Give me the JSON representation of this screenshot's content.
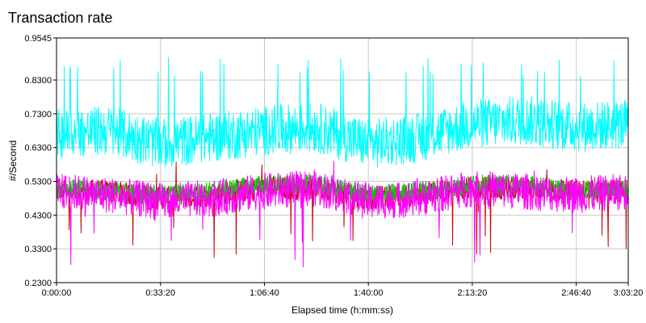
{
  "chart_data": {
    "type": "line",
    "title": "Transaction rate",
    "xlabel": "Elapsed time (h:mm:ss)",
    "ylabel": "#/Second",
    "x_range_seconds": [
      0,
      10999
    ],
    "ylim": [
      0.23,
      0.9545
    ],
    "x_ticks": [
      "0:00:00",
      "0:33:20",
      "1:06:40",
      "1:40:00",
      "2:13:20",
      "2:46:40",
      "3:03:20"
    ],
    "x_tick_seconds": [
      0,
      2000,
      4000,
      6000,
      8000,
      10000,
      11000
    ],
    "y_ticks": [
      "0.2300",
      "0.3300",
      "0.4300",
      "0.5300",
      "0.6300",
      "0.7300",
      "0.8300",
      "0.9545"
    ],
    "y_tick_values": [
      0.23,
      0.33,
      0.43,
      0.53,
      0.63,
      0.73,
      0.83,
      0.9545
    ],
    "grid": true,
    "legend": "none",
    "series": [
      {
        "color": "#00ffff",
        "approx_mean": 0.67,
        "approx_min": 0.52,
        "approx_max": 0.9,
        "x": [
          0,
          1000,
          2000,
          3000,
          4000,
          5000,
          6000,
          7000,
          8000,
          9000,
          10000,
          10999
        ],
        "values": [
          0.67,
          0.68,
          0.64,
          0.66,
          0.68,
          0.69,
          0.64,
          0.66,
          0.7,
          0.71,
          0.69,
          0.7
        ]
      },
      {
        "color": "#ff00ff",
        "approx_mean": 0.49,
        "approx_min": 0.24,
        "approx_max": 0.61,
        "x": [
          0,
          1000,
          2000,
          3000,
          4000,
          5000,
          6000,
          7000,
          8000,
          9000,
          10000,
          10999
        ],
        "values": [
          0.5,
          0.49,
          0.47,
          0.48,
          0.5,
          0.51,
          0.47,
          0.48,
          0.51,
          0.5,
          0.49,
          0.5
        ]
      },
      {
        "color": "#00cc00",
        "approx_mean": 0.51,
        "x": [
          0,
          1000,
          2000,
          3000,
          4000,
          5000,
          6000,
          7000,
          8000,
          9000,
          10000,
          10999
        ],
        "values": [
          0.51,
          0.5,
          0.49,
          0.5,
          0.52,
          0.52,
          0.49,
          0.5,
          0.52,
          0.52,
          0.5,
          0.51
        ]
      },
      {
        "color": "#cc0000",
        "approx_mean": 0.5,
        "x": [
          0,
          1000,
          2000,
          3000,
          4000,
          5000,
          6000,
          7000,
          8000,
          9000,
          10000,
          10999
        ],
        "values": [
          0.5,
          0.5,
          0.48,
          0.49,
          0.51,
          0.51,
          0.48,
          0.49,
          0.51,
          0.51,
          0.5,
          0.5
        ]
      }
    ]
  }
}
